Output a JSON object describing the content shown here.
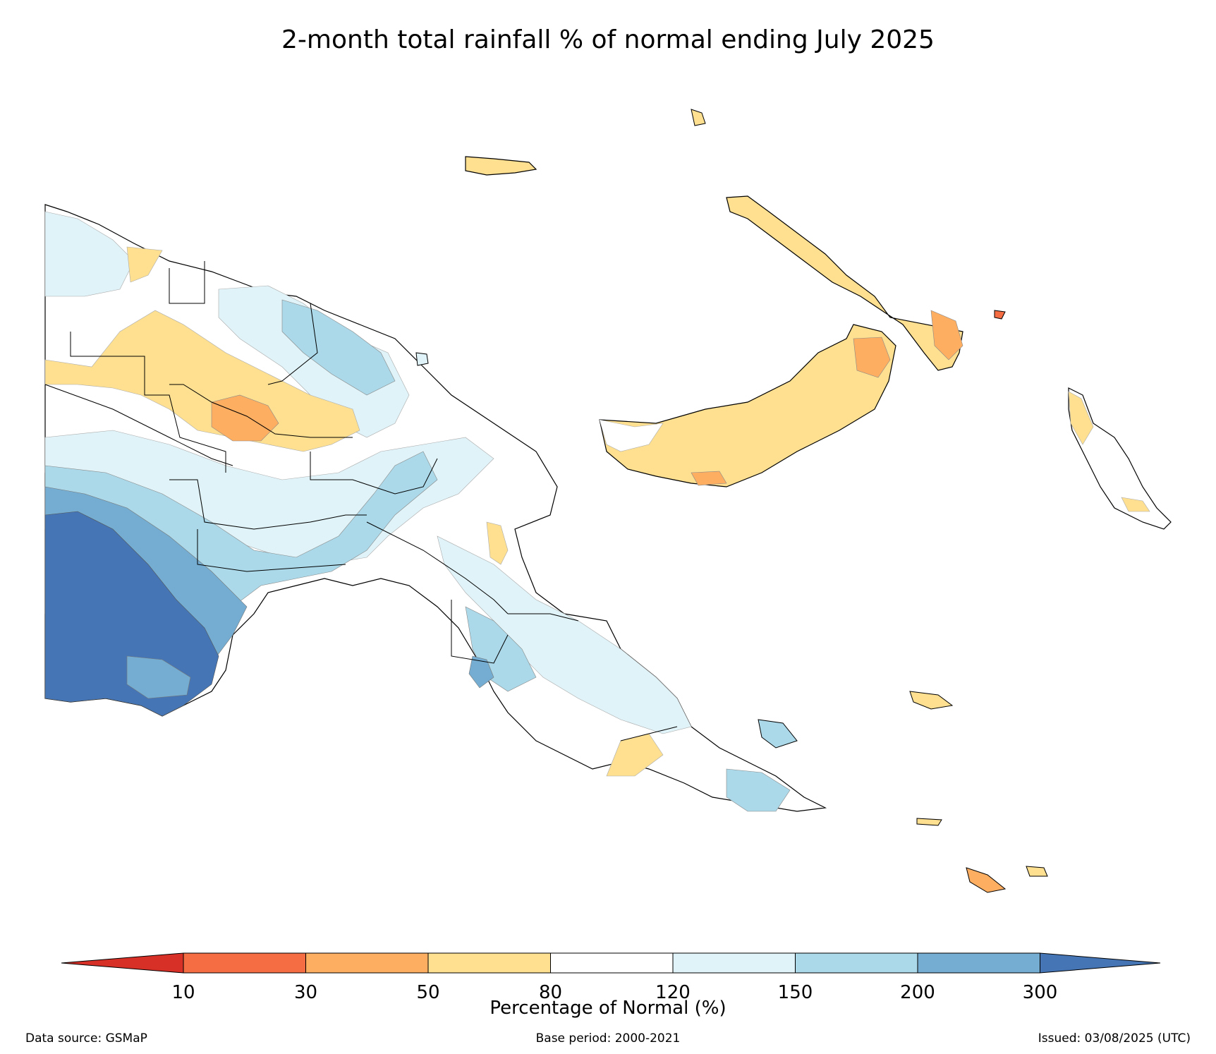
{
  "title": "2-month total rainfall % of normal ending July 2025",
  "colorbar": {
    "label": "Percentage of Normal (%)",
    "ticks": [
      "10",
      "30",
      "50",
      "80",
      "120",
      "150",
      "200",
      "300"
    ],
    "under_color": "#d73027",
    "over_color": "#4575b4",
    "bins": [
      {
        "range": "10-30",
        "color": "#f46d43"
      },
      {
        "range": "30-50",
        "color": "#fdae61"
      },
      {
        "range": "50-80",
        "color": "#fee090"
      },
      {
        "range": "80-120",
        "color": "#ffffff"
      },
      {
        "range": "120-150",
        "color": "#e0f3f8"
      },
      {
        "range": "150-200",
        "color": "#abd9e9"
      },
      {
        "range": "200-300",
        "color": "#74add1"
      }
    ]
  },
  "footer": {
    "source": "Data source: GSMaP",
    "base": "Base period: 2000-2021",
    "issued": "Issued: 03/08/2025 (UTC)"
  }
}
